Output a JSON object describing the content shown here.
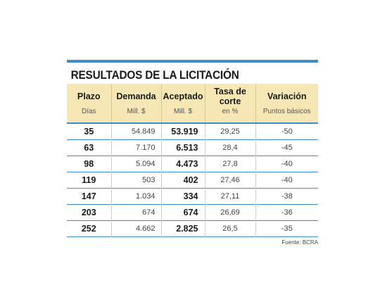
{
  "title": "RESULTADOS DE LA LICITACIÓN",
  "headers": [
    "Plazo",
    "Demanda",
    "Aceptado",
    "Tasa de corte",
    "Variación"
  ],
  "subheaders": [
    "Días",
    "Mill. $",
    "Mill. $",
    "en %",
    "Puntos básicos"
  ],
  "rows": [
    {
      "plazo": "35",
      "demanda": "54.849",
      "aceptado": "53.919",
      "tasa": "29,25",
      "variacion": "-50"
    },
    {
      "plazo": "63",
      "demanda": "7.170",
      "aceptado": "6.513",
      "tasa": "28,4",
      "variacion": "-45"
    },
    {
      "plazo": "98",
      "demanda": "5.094",
      "aceptado": "4.473",
      "tasa": "27,8",
      "variacion": "-40"
    },
    {
      "plazo": "119",
      "demanda": "503",
      "aceptado": "402",
      "tasa": "27,46",
      "variacion": "-40"
    },
    {
      "plazo": "147",
      "demanda": "1.034",
      "aceptado": "334",
      "tasa": "27,11",
      "variacion": "-38"
    },
    {
      "plazo": "203",
      "demanda": "674",
      "aceptado": "674",
      "tasa": "26,69",
      "variacion": "-36"
    },
    {
      "plazo": "252",
      "demanda": "4.662",
      "aceptado": "2.825",
      "tasa": "26,5",
      "variacion": "-35"
    }
  ],
  "source": "Fuente: BCRA",
  "colors": {
    "accent": "#3a8fc7",
    "header_bg": "#f6e7b5"
  }
}
